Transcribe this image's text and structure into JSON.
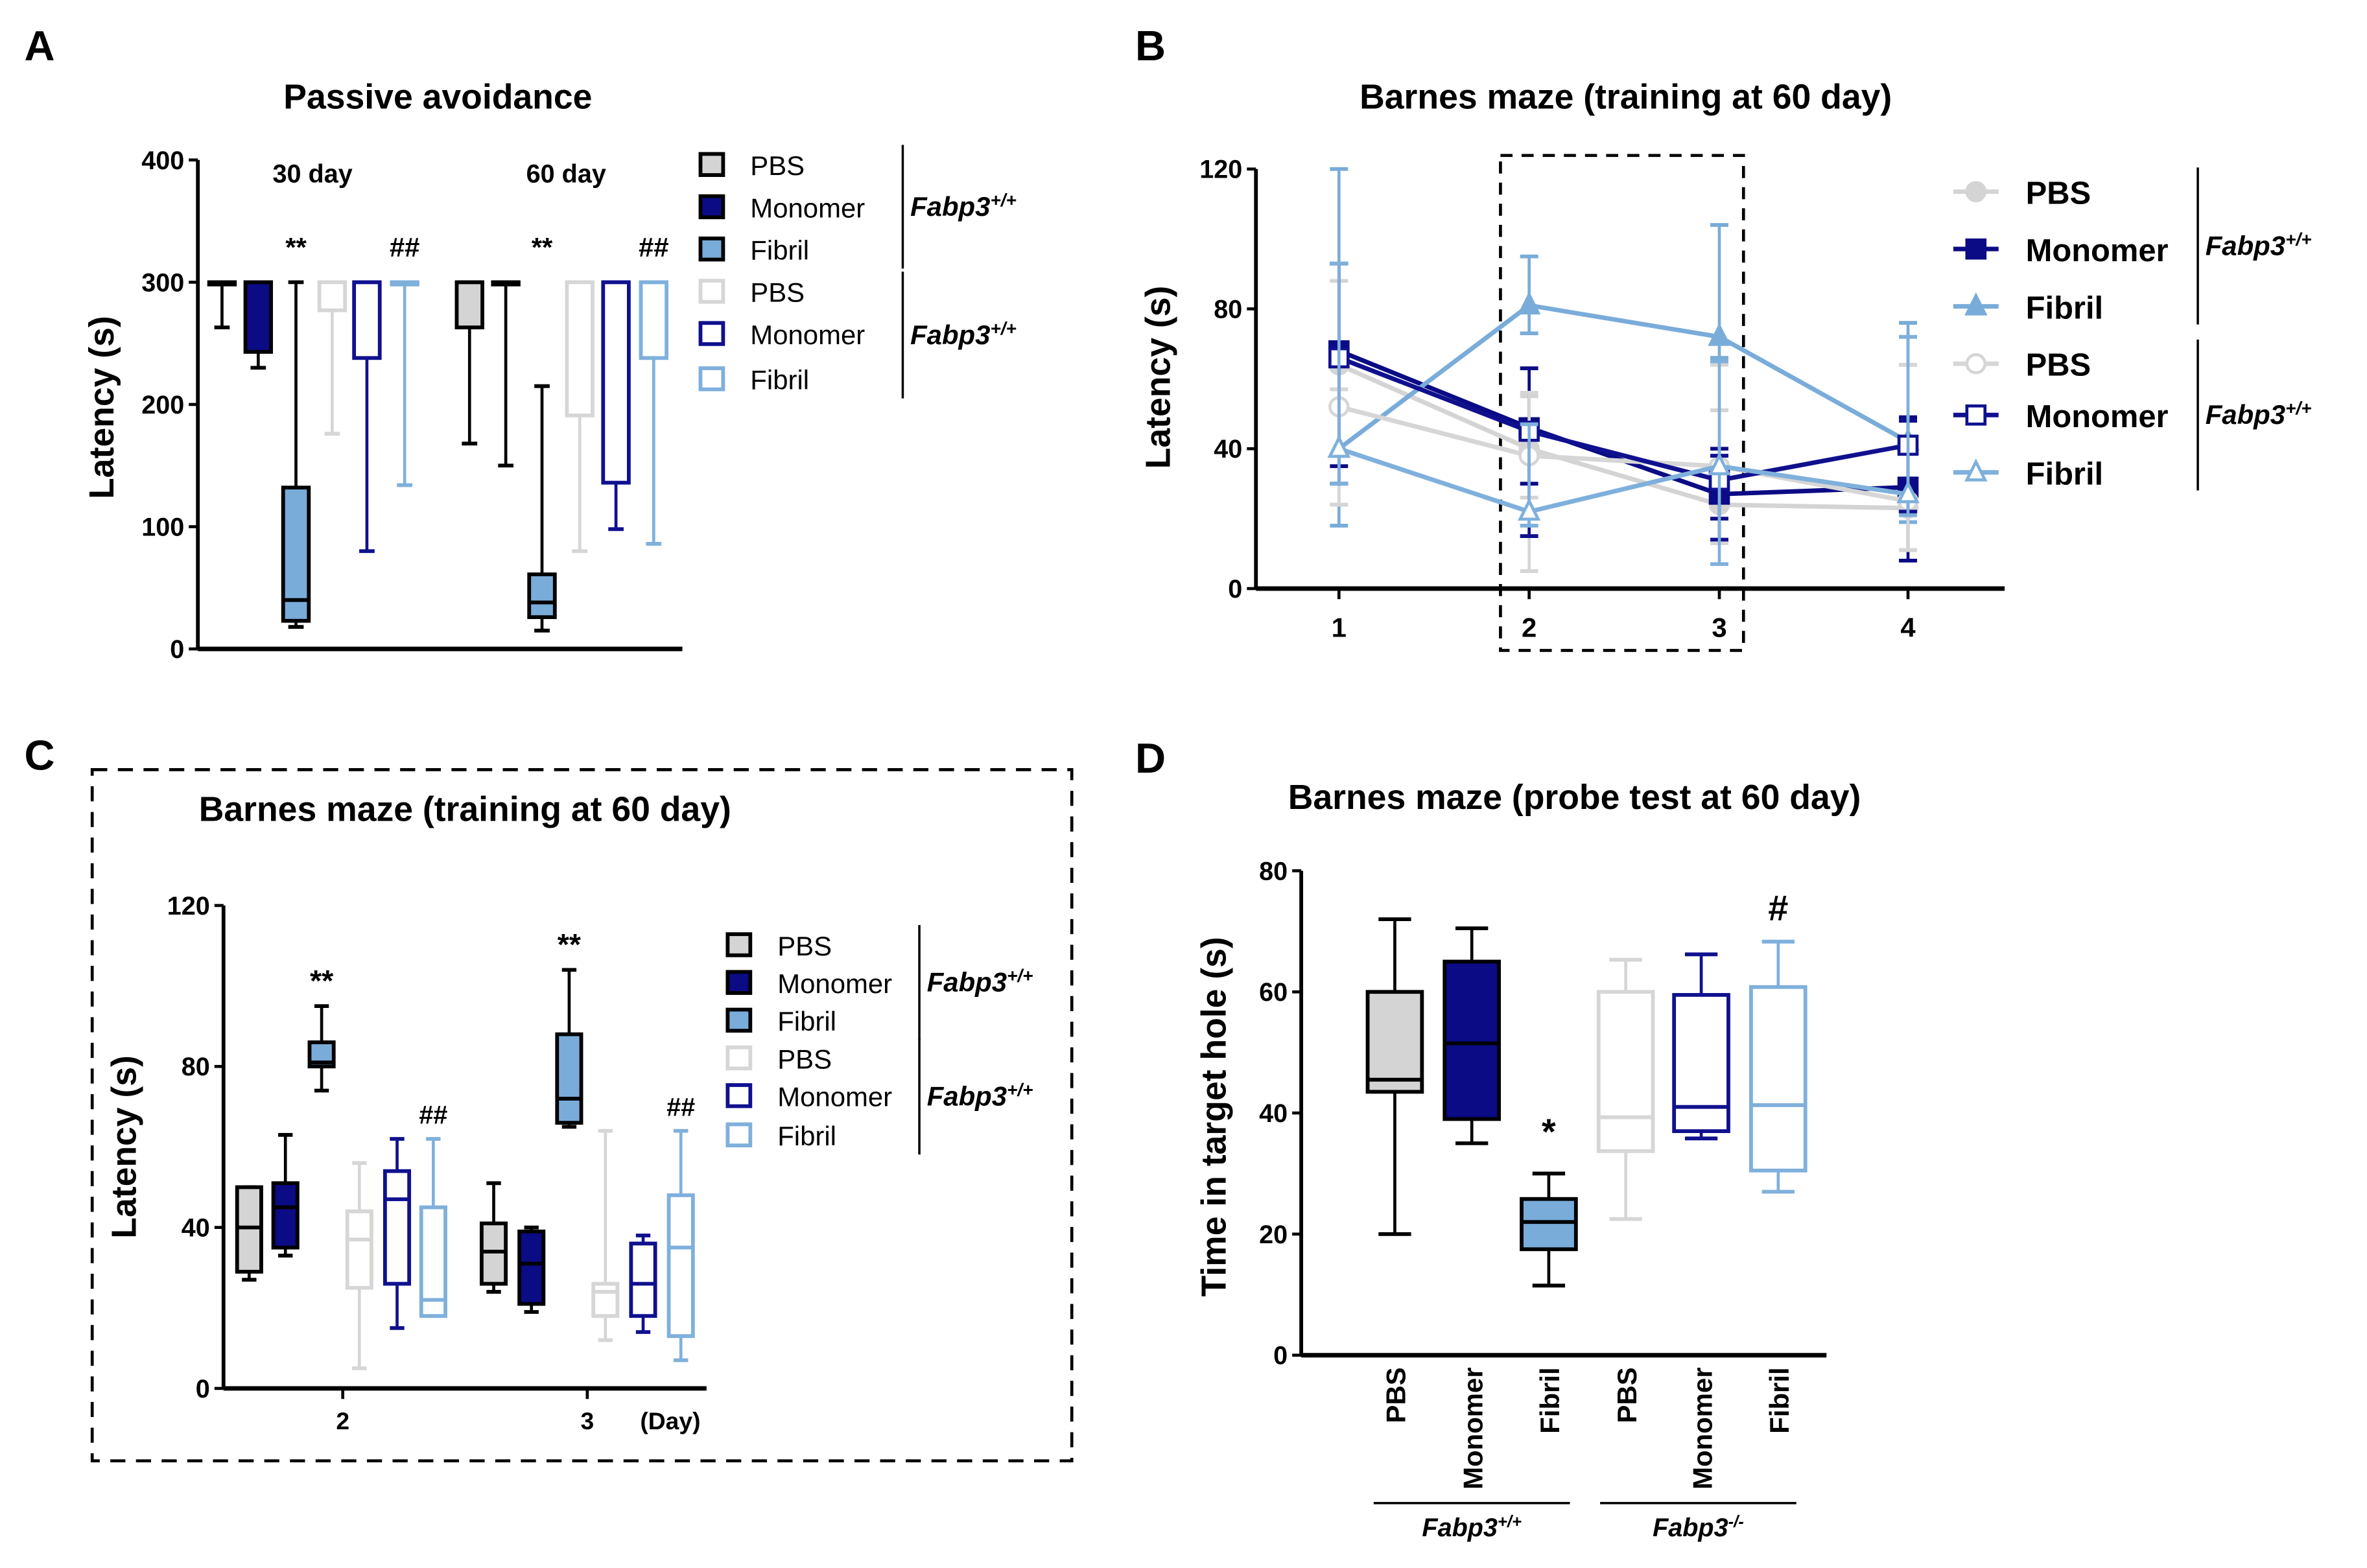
{
  "colors": {
    "pbs_wt": "#d4d4d4",
    "mon_wt": "#0b0b85",
    "fib_wt": "#79acd9",
    "pbs_ko": "#d6d6d6",
    "mon_ko": "#10108f",
    "fib_ko": "#7fb0dc",
    "black": "#000000"
  },
  "chart_data": [
    {
      "panel": "A",
      "type": "box",
      "title": "Passive avoidance",
      "ylabel": "Latency (s)",
      "ylim": [
        0,
        400
      ],
      "yticks": [
        0,
        100,
        200,
        300,
        400
      ],
      "groups": [
        {
          "label": "30 day",
          "boxes": [
            {
              "series": "pbs_wt",
              "min": 263,
              "q1": 300,
              "median": 300,
              "q3": 300,
              "max": 300
            },
            {
              "series": "mon_wt",
              "min": 230,
              "q1": 243,
              "median": 300,
              "q3": 300,
              "max": 300
            },
            {
              "series": "fib_wt",
              "min": 18,
              "q1": 23,
              "median": 40,
              "q3": 132,
              "max": 300
            },
            {
              "series": "pbs_ko",
              "min": 176,
              "q1": 277,
              "median": 300,
              "q3": 300,
              "max": 300
            },
            {
              "series": "mon_ko",
              "min": 80,
              "q1": 238,
              "median": 300,
              "q3": 300,
              "max": 300
            },
            {
              "series": "fib_ko",
              "min": 134,
              "q1": 300,
              "median": 300,
              "q3": 300,
              "max": 300
            }
          ]
        },
        {
          "label": "60 day",
          "boxes": [
            {
              "series": "pbs_wt",
              "min": 168,
              "q1": 263,
              "median": 300,
              "q3": 300,
              "max": 300
            },
            {
              "series": "mon_wt",
              "min": 150,
              "q1": 300,
              "median": 300,
              "q3": 300,
              "max": 300
            },
            {
              "series": "fib_wt",
              "min": 15,
              "q1": 26,
              "median": 38,
              "q3": 61,
              "max": 215
            },
            {
              "series": "pbs_ko",
              "min": 80,
              "q1": 191,
              "median": 300,
              "q3": 300,
              "max": 300
            },
            {
              "series": "mon_ko",
              "min": 98,
              "q1": 136,
              "median": 300,
              "q3": 300,
              "max": 300
            },
            {
              "series": "fib_ko",
              "min": 86,
              "q1": 238,
              "median": 300,
              "q3": 300,
              "max": 300
            }
          ]
        }
      ],
      "annotations": [
        {
          "text": "**",
          "group": 0,
          "box": 2
        },
        {
          "text": "##",
          "group": 0,
          "box": 5
        },
        {
          "text": "**",
          "group": 1,
          "box": 2
        },
        {
          "text": "##",
          "group": 1,
          "box": 5
        }
      ],
      "legend": {
        "items": [
          {
            "series": "pbs_wt",
            "label": "PBS"
          },
          {
            "series": "mon_wt",
            "label": "Monomer"
          },
          {
            "series": "fib_wt",
            "label": "Fibril"
          },
          {
            "series": "pbs_ko",
            "label": "PBS"
          },
          {
            "series": "mon_ko",
            "label": "Monomer"
          },
          {
            "series": "fib_ko",
            "label": "Fibril"
          }
        ],
        "genotypes": [
          {
            "name": "Fabp3",
            "sup": "+/+"
          },
          {
            "name": "Fabp3",
            "sup": "+/+"
          }
        ]
      }
    },
    {
      "panel": "B",
      "type": "line",
      "title": "Barnes maze (training at 60 day)",
      "ylabel": "Latency (s)",
      "ylim": [
        0,
        120
      ],
      "yticks": [
        0,
        40,
        80,
        120
      ],
      "x": [
        1,
        2,
        3,
        4
      ],
      "xticks": [
        "1",
        "2",
        "3",
        "4"
      ],
      "series": [
        {
          "series": "pbs_wt",
          "marker": "circle",
          "filled": true,
          "values": [
            64,
            40,
            24,
            23
          ],
          "err_low": [
            24,
            26,
            13,
            11
          ],
          "err_high": [
            88,
            55,
            51,
            64
          ]
        },
        {
          "series": "mon_wt",
          "marker": "square",
          "filled": true,
          "values": [
            68,
            46,
            27,
            29
          ],
          "err_low": [
            35,
            30,
            20,
            8
          ],
          "err_high": [
            93,
            63,
            40,
            49
          ]
        },
        {
          "series": "fib_wt",
          "marker": "triangle",
          "filled": true,
          "values": [
            40,
            81,
            72,
            42
          ],
          "err_low": [
            18,
            73,
            66,
            19
          ],
          "err_high": [
            120,
            95,
            104,
            76
          ]
        },
        {
          "series": "pbs_ko",
          "marker": "circle",
          "filled": false,
          "values": [
            52,
            38,
            35,
            25
          ],
          "err_low": [
            24,
            5,
            13,
            11
          ],
          "err_high": [
            57,
            56,
            64,
            64
          ]
        },
        {
          "series": "mon_ko",
          "marker": "square",
          "filled": false,
          "values": [
            66,
            45,
            31,
            41
          ],
          "err_low": [
            30,
            15,
            14,
            22
          ],
          "err_high": [
            93,
            47,
            38,
            48
          ]
        },
        {
          "series": "fib_ko",
          "marker": "triangle",
          "filled": false,
          "values": [
            40,
            22,
            35,
            27
          ],
          "err_low": [
            30,
            18,
            7,
            21
          ],
          "err_high": [
            93,
            47,
            65,
            72
          ]
        }
      ],
      "legend": {
        "items": [
          {
            "series": "pbs_wt",
            "label": "PBS"
          },
          {
            "series": "mon_wt",
            "label": "Monomer"
          },
          {
            "series": "fib_wt",
            "label": "Fibril"
          },
          {
            "series": "pbs_ko",
            "label": "PBS"
          },
          {
            "series": "mon_ko",
            "label": "Monomer"
          },
          {
            "series": "fib_ko",
            "label": "Fibril"
          }
        ],
        "genotypes": [
          {
            "name": "Fabp3",
            "sup": "+/+"
          },
          {
            "name": "Fabp3",
            "sup": "+/+"
          }
        ]
      }
    },
    {
      "panel": "C",
      "type": "box",
      "title": "Barnes maze (training at 60 day)",
      "ylabel": "Latency (s)",
      "ylim": [
        0,
        120
      ],
      "yticks": [
        0,
        40,
        80,
        120
      ],
      "xunit": "(Day)",
      "groups": [
        {
          "label": "2",
          "boxes": [
            {
              "series": "pbs_wt",
              "min": 27,
              "q1": 29,
              "median": 40,
              "q3": 50,
              "max": 50
            },
            {
              "series": "mon_wt",
              "min": 33,
              "q1": 35,
              "median": 45,
              "q3": 51,
              "max": 63
            },
            {
              "series": "fib_wt",
              "min": 74,
              "q1": 80,
              "median": 81,
              "q3": 86,
              "max": 95
            },
            {
              "series": "pbs_ko",
              "min": 5,
              "q1": 25,
              "median": 37,
              "q3": 44,
              "max": 56
            },
            {
              "series": "mon_ko",
              "min": 15,
              "q1": 26,
              "median": 47,
              "q3": 54,
              "max": 62
            },
            {
              "series": "fib_ko",
              "min": 18,
              "q1": 18,
              "median": 22,
              "q3": 45,
              "max": 62
            }
          ]
        },
        {
          "label": "3",
          "boxes": [
            {
              "series": "pbs_wt",
              "min": 24,
              "q1": 26,
              "median": 34,
              "q3": 41,
              "max": 51
            },
            {
              "series": "mon_wt",
              "min": 19,
              "q1": 21,
              "median": 31,
              "q3": 39,
              "max": 40
            },
            {
              "series": "fib_wt",
              "min": 65,
              "q1": 66,
              "median": 72,
              "q3": 88,
              "max": 104
            },
            {
              "series": "pbs_ko",
              "min": 12,
              "q1": 18,
              "median": 24,
              "q3": 26,
              "max": 64
            },
            {
              "series": "mon_ko",
              "min": 14,
              "q1": 18,
              "median": 26,
              "q3": 36,
              "max": 38
            },
            {
              "series": "fib_ko",
              "min": 7,
              "q1": 13,
              "median": 35,
              "q3": 48,
              "max": 64
            }
          ]
        }
      ],
      "annotations": [
        {
          "text": "**",
          "group": 0,
          "box": 2
        },
        {
          "text": "##",
          "group": 0,
          "box": 5
        },
        {
          "text": "**",
          "group": 1,
          "box": 2
        },
        {
          "text": "##",
          "group": 1,
          "box": 5
        }
      ],
      "legend": {
        "items": [
          {
            "series": "pbs_wt",
            "label": "PBS"
          },
          {
            "series": "mon_wt",
            "label": "Monomer"
          },
          {
            "series": "fib_wt",
            "label": "Fibril"
          },
          {
            "series": "pbs_ko",
            "label": "PBS"
          },
          {
            "series": "mon_ko",
            "label": "Monomer"
          },
          {
            "series": "fib_ko",
            "label": "Fibril"
          }
        ],
        "genotypes": [
          {
            "name": "Fabp3",
            "sup": "+/+"
          },
          {
            "name": "Fabp3",
            "sup": "+/+"
          }
        ]
      }
    },
    {
      "panel": "D",
      "type": "box",
      "title": "Barnes maze (probe test at 60 day)",
      "ylabel": "Time in target hole (s)",
      "ylim": [
        0,
        80
      ],
      "yticks": [
        0,
        20,
        40,
        60,
        80
      ],
      "categories": [
        "PBS",
        "Monomer",
        "Fibril",
        "PBS",
        "Monomer",
        "Fibril"
      ],
      "groups": [
        {
          "label": "",
          "boxes": [
            {
              "series": "pbs_wt",
              "min": 20,
              "q1": 43.5,
              "median": 45.5,
              "q3": 60,
              "max": 72
            },
            {
              "series": "mon_wt",
              "min": 35,
              "q1": 39,
              "median": 51.5,
              "q3": 65,
              "max": 70.5
            },
            {
              "series": "fib_wt",
              "min": 11.5,
              "q1": 17.5,
              "median": 22,
              "q3": 25.8,
              "max": 30
            },
            {
              "series": "pbs_ko",
              "min": 22.5,
              "q1": 33.7,
              "median": 39.3,
              "q3": 60,
              "max": 65.3
            },
            {
              "series": "mon_ko",
              "min": 35.8,
              "q1": 37,
              "median": 41,
              "q3": 59.5,
              "max": 66.2
            },
            {
              "series": "fib_ko",
              "min": 27,
              "q1": 30.5,
              "median": 41.3,
              "q3": 60.8,
              "max": 68.3
            }
          ]
        }
      ],
      "annotations": [
        {
          "text": "*",
          "group": 0,
          "box": 2
        },
        {
          "text": "#",
          "group": 0,
          "box": 5
        }
      ],
      "genotype_groups": [
        {
          "name": "Fabp3",
          "sup": "+/+"
        },
        {
          "name": "Fabp3",
          "sup": "-/-"
        }
      ]
    }
  ]
}
